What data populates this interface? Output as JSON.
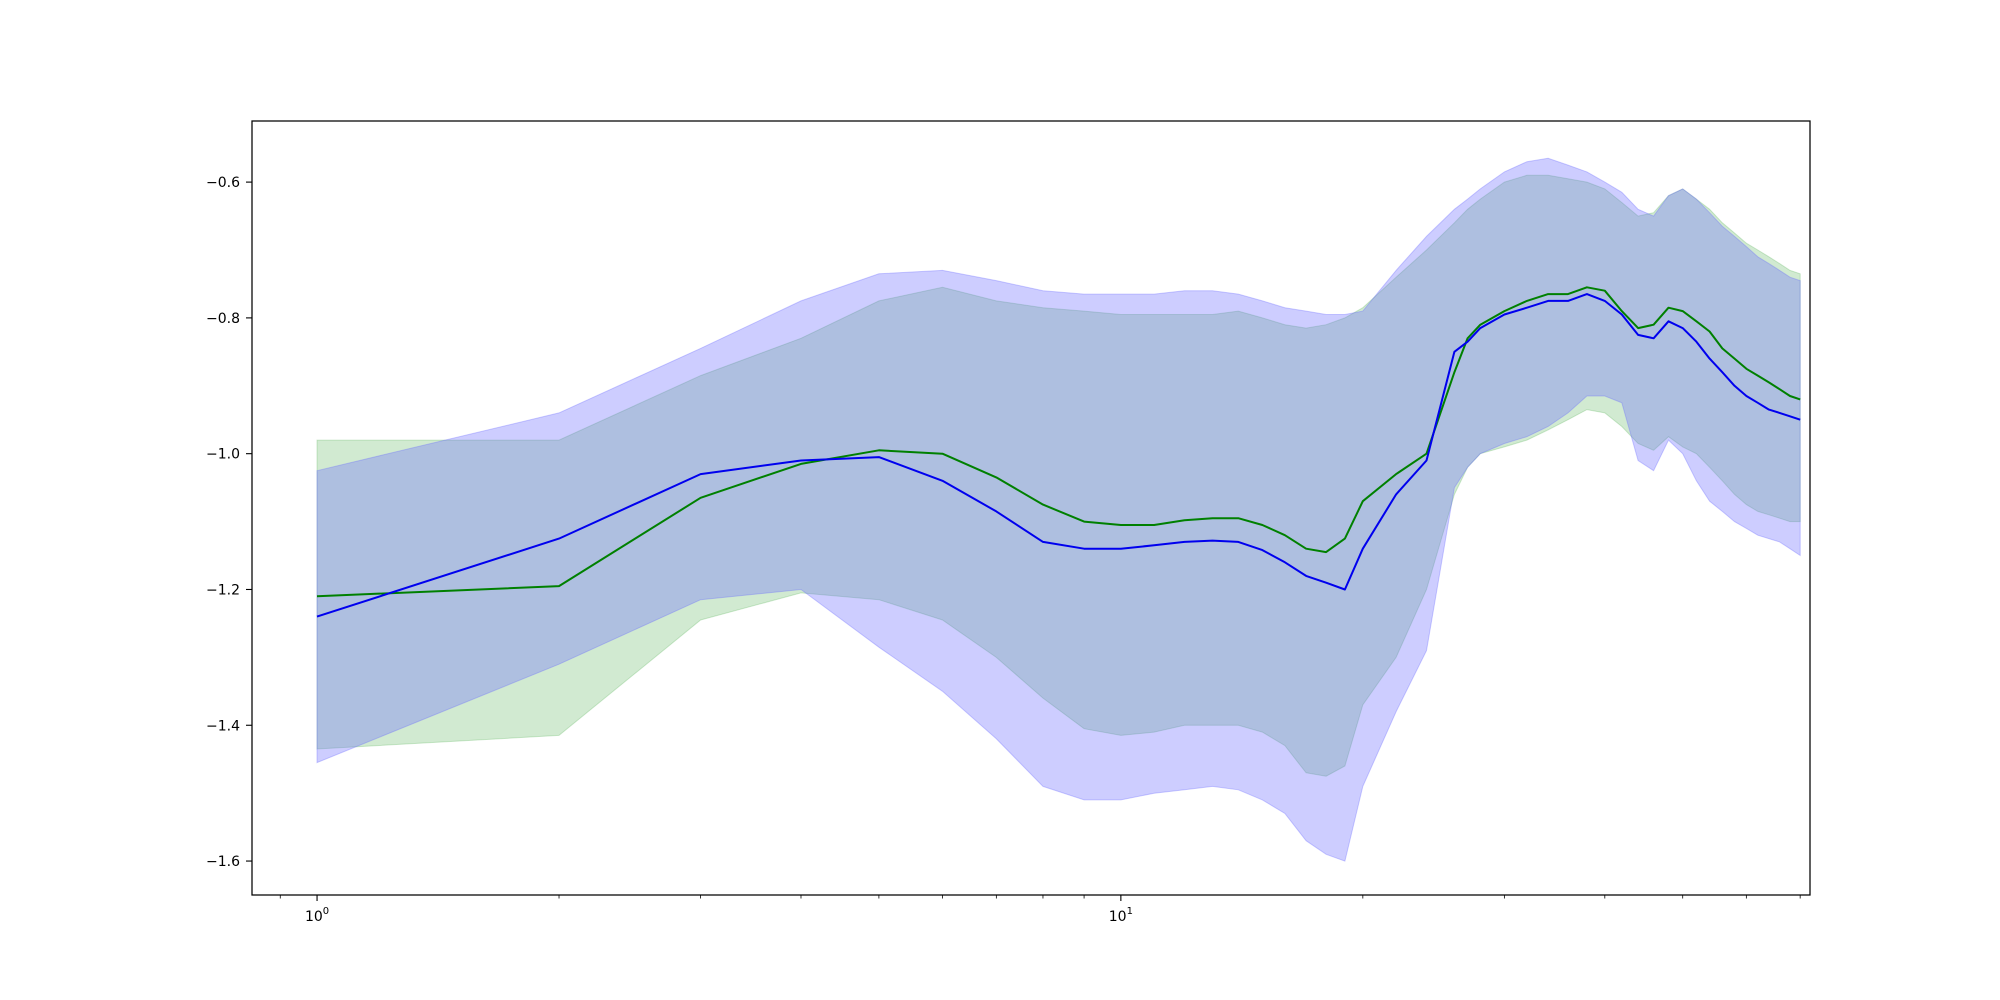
{
  "chart_data": {
    "type": "line",
    "title": "",
    "xlabel": "",
    "ylabel": "",
    "xscale": "log",
    "xlim": [
      0.83,
      72
    ],
    "ylim": [
      -1.65,
      -0.51
    ],
    "grid": false,
    "x_ticks": [
      {
        "value": 1,
        "base": "10",
        "exp": "0"
      },
      {
        "value": 10,
        "base": "10",
        "exp": "1"
      }
    ],
    "y_ticks": [
      {
        "value": -0.6,
        "label": "−0.6"
      },
      {
        "value": -0.8,
        "label": "−0.8"
      },
      {
        "value": -1.0,
        "label": "−1.0"
      },
      {
        "value": -1.2,
        "label": "−1.2"
      },
      {
        "value": -1.4,
        "label": "−1.4"
      },
      {
        "value": -1.6,
        "label": "−1.6"
      }
    ],
    "x": [
      1,
      2,
      3,
      4,
      5,
      6,
      7,
      8,
      9,
      10,
      11,
      12,
      13,
      14,
      15,
      16,
      17,
      18,
      19,
      20,
      22,
      24,
      26,
      27,
      28,
      30,
      32,
      34,
      36,
      38,
      40,
      42,
      44,
      46,
      48,
      50,
      52,
      54,
      56,
      58,
      60,
      62,
      64,
      66,
      68,
      70
    ],
    "series": [
      {
        "color": "#008000",
        "band_color": "#2ca02c",
        "band_opacity": 0.22,
        "values": [
          -1.21,
          -1.195,
          -1.065,
          -1.015,
          -0.995,
          -1.0,
          -1.035,
          -1.075,
          -1.1,
          -1.105,
          -1.105,
          -1.098,
          -1.095,
          -1.095,
          -1.105,
          -1.12,
          -1.14,
          -1.145,
          -1.125,
          -1.07,
          -1.03,
          -1.0,
          -0.88,
          -0.83,
          -0.81,
          -0.79,
          -0.775,
          -0.765,
          -0.765,
          -0.755,
          -0.76,
          -0.79,
          -0.815,
          -0.81,
          -0.785,
          -0.79,
          -0.805,
          -0.82,
          -0.845,
          -0.86,
          -0.875,
          -0.885,
          -0.895,
          -0.905,
          -0.915,
          -0.92
        ],
        "upper": [
          -0.98,
          -0.98,
          -0.885,
          -0.83,
          -0.775,
          -0.755,
          -0.775,
          -0.785,
          -0.79,
          -0.795,
          -0.795,
          -0.795,
          -0.795,
          -0.79,
          -0.8,
          -0.81,
          -0.815,
          -0.81,
          -0.8,
          -0.785,
          -0.74,
          -0.7,
          -0.66,
          -0.64,
          -0.625,
          -0.6,
          -0.59,
          -0.59,
          -0.595,
          -0.6,
          -0.61,
          -0.63,
          -0.65,
          -0.645,
          -0.62,
          -0.61,
          -0.625,
          -0.64,
          -0.66,
          -0.675,
          -0.69,
          -0.7,
          -0.71,
          -0.72,
          -0.73,
          -0.735
        ],
        "lower": [
          -1.435,
          -1.415,
          -1.245,
          -1.205,
          -1.215,
          -1.245,
          -1.3,
          -1.36,
          -1.405,
          -1.415,
          -1.41,
          -1.4,
          -1.4,
          -1.4,
          -1.41,
          -1.43,
          -1.47,
          -1.475,
          -1.46,
          -1.37,
          -1.3,
          -1.2,
          -1.06,
          -1.02,
          -1.0,
          -0.99,
          -0.98,
          -0.965,
          -0.95,
          -0.935,
          -0.94,
          -0.96,
          -0.985,
          -0.995,
          -0.975,
          -0.99,
          -1.0,
          -1.02,
          -1.04,
          -1.06,
          -1.075,
          -1.085,
          -1.09,
          -1.095,
          -1.1,
          -1.1
        ]
      },
      {
        "color": "#0000ee",
        "band_color": "#6666ff",
        "band_opacity": 0.33,
        "values": [
          -1.24,
          -1.125,
          -1.03,
          -1.01,
          -1.005,
          -1.04,
          -1.085,
          -1.13,
          -1.14,
          -1.14,
          -1.135,
          -1.13,
          -1.128,
          -1.13,
          -1.142,
          -1.16,
          -1.18,
          -1.19,
          -1.2,
          -1.14,
          -1.06,
          -1.01,
          -0.85,
          -0.835,
          -0.815,
          -0.795,
          -0.785,
          -0.775,
          -0.775,
          -0.765,
          -0.775,
          -0.795,
          -0.825,
          -0.83,
          -0.805,
          -0.815,
          -0.835,
          -0.86,
          -0.88,
          -0.9,
          -0.915,
          -0.925,
          -0.935,
          -0.94,
          -0.945,
          -0.95
        ],
        "upper": [
          -1.025,
          -0.94,
          -0.845,
          -0.775,
          -0.735,
          -0.73,
          -0.745,
          -0.76,
          -0.765,
          -0.765,
          -0.765,
          -0.76,
          -0.76,
          -0.765,
          -0.775,
          -0.785,
          -0.79,
          -0.795,
          -0.795,
          -0.79,
          -0.73,
          -0.68,
          -0.64,
          -0.625,
          -0.61,
          -0.585,
          -0.57,
          -0.565,
          -0.575,
          -0.585,
          -0.6,
          -0.615,
          -0.64,
          -0.65,
          -0.62,
          -0.61,
          -0.625,
          -0.645,
          -0.665,
          -0.68,
          -0.695,
          -0.71,
          -0.72,
          -0.73,
          -0.74,
          -0.745
        ],
        "lower": [
          -1.455,
          -1.31,
          -1.215,
          -1.2,
          -1.285,
          -1.35,
          -1.42,
          -1.49,
          -1.51,
          -1.51,
          -1.5,
          -1.495,
          -1.49,
          -1.495,
          -1.51,
          -1.53,
          -1.57,
          -1.59,
          -1.6,
          -1.49,
          -1.38,
          -1.29,
          -1.05,
          -1.02,
          -1.0,
          -0.985,
          -0.975,
          -0.96,
          -0.94,
          -0.915,
          -0.915,
          -0.925,
          -1.01,
          -1.025,
          -0.98,
          -1.0,
          -1.04,
          -1.07,
          -1.085,
          -1.1,
          -1.11,
          -1.12,
          -1.125,
          -1.13,
          -1.14,
          -1.15
        ]
      }
    ]
  }
}
